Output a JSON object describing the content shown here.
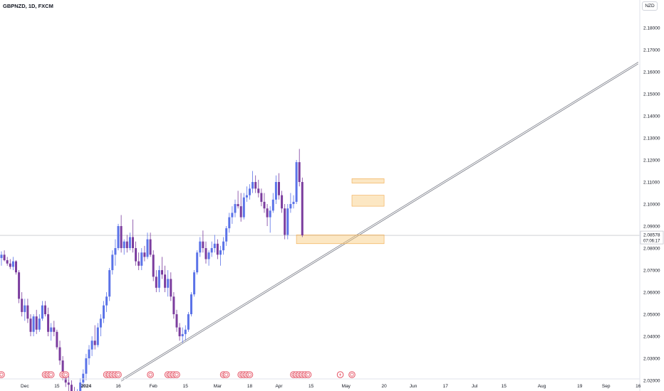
{
  "header": {
    "symbol": "GBPNZD, 1D, FXCM",
    "currency": "NZD"
  },
  "price_label": {
    "price": "2.08578",
    "countdown": "07:06:17"
  },
  "colors": {
    "up": "#5b73e8",
    "down": "#7b3d9e",
    "zone": "#f9c97a",
    "trendline": "#787b86",
    "axis_text": "#131722",
    "price_line": "#b2b5be",
    "event": "#e55466"
  },
  "chart_data": {
    "type": "candlestick",
    "title": "GBPNZD, 1D, FXCM",
    "ylim": [
      2.02,
      2.185
    ],
    "y_ticks": [
      "2.18000",
      "2.17000",
      "2.16000",
      "2.15000",
      "2.14000",
      "2.13000",
      "2.12000",
      "2.11000",
      "2.10000",
      "2.09000",
      "2.08000",
      "2.07000",
      "2.06000",
      "2.05000",
      "2.04000",
      "2.03000",
      "2.02000"
    ],
    "y_tick_values": [
      2.18,
      2.17,
      2.16,
      2.15,
      2.14,
      2.13,
      2.12,
      2.11,
      2.1,
      2.09,
      2.08,
      2.07,
      2.06,
      2.05,
      2.04,
      2.03,
      2.02
    ],
    "x_ticks": [
      {
        "label": "Dec",
        "index": 8
      },
      {
        "label": "15",
        "index": 19
      },
      {
        "label": "2024",
        "index": 29
      },
      {
        "label": "16",
        "index": 40
      },
      {
        "label": "Feb",
        "index": 52
      },
      {
        "label": "15",
        "index": 63
      },
      {
        "label": "Mar",
        "index": 74
      },
      {
        "label": "18",
        "index": 85
      },
      {
        "label": "Apr",
        "index": 95
      },
      {
        "label": "15",
        "index": 106
      },
      {
        "label": "May",
        "index": 118
      },
      {
        "label": "20",
        "index": 131
      },
      {
        "label": "Jun",
        "index": 141
      },
      {
        "label": "17",
        "index": 152
      },
      {
        "label": "Jul",
        "index": 162
      },
      {
        "label": "15",
        "index": 172
      },
      {
        "label": "Aug",
        "index": 185
      },
      {
        "label": "19",
        "index": 198
      },
      {
        "label": "Sep",
        "index": 207
      },
      {
        "label": "16",
        "index": 218
      }
    ],
    "candles": [
      [
        2.0755,
        2.0785,
        2.072,
        2.077
      ],
      [
        2.077,
        2.079,
        2.074,
        2.0745
      ],
      [
        2.0745,
        2.076,
        2.072,
        2.073
      ],
      [
        2.073,
        2.075,
        2.0705,
        2.0715
      ],
      [
        2.0715,
        2.076,
        2.07,
        2.074
      ],
      [
        2.074,
        2.0745,
        2.068,
        2.069
      ],
      [
        2.069,
        2.07,
        2.055,
        2.057
      ],
      [
        2.057,
        2.06,
        2.049,
        2.051
      ],
      [
        2.051,
        2.057,
        2.047,
        2.054
      ],
      [
        2.054,
        2.057,
        2.046,
        2.048
      ],
      [
        2.048,
        2.05,
        2.04,
        2.042
      ],
      [
        2.042,
        2.05,
        2.04,
        2.049
      ],
      [
        2.049,
        2.052,
        2.041,
        2.043
      ],
      [
        2.043,
        2.05,
        2.042,
        2.048
      ],
      [
        2.048,
        2.056,
        2.047,
        2.054
      ],
      [
        2.054,
        2.056,
        2.049,
        2.05
      ],
      [
        2.05,
        2.053,
        2.04,
        2.042
      ],
      [
        2.042,
        2.046,
        2.038,
        2.044
      ],
      [
        2.044,
        2.047,
        2.04,
        2.042
      ],
      [
        2.042,
        2.043,
        2.034,
        2.035
      ],
      [
        2.035,
        2.038,
        2.027,
        2.029
      ],
      [
        2.029,
        2.031,
        2.02,
        2.022
      ],
      [
        2.022,
        2.024,
        2.017,
        2.019
      ],
      [
        2.019,
        2.022,
        2.015,
        2.018
      ],
      [
        2.018,
        2.02,
        2.012,
        2.015
      ],
      [
        2.015,
        2.017,
        2.009,
        2.011
      ],
      [
        2.011,
        2.016,
        2.008,
        2.014
      ],
      [
        2.014,
        2.021,
        2.012,
        2.019
      ],
      [
        2.019,
        2.025,
        2.017,
        2.023
      ],
      [
        2.023,
        2.032,
        2.02,
        2.03
      ],
      [
        2.03,
        2.036,
        2.027,
        2.034
      ],
      [
        2.034,
        2.04,
        2.031,
        2.038
      ],
      [
        2.038,
        2.045,
        2.034,
        2.036
      ],
      [
        2.036,
        2.046,
        2.035,
        2.044
      ],
      [
        2.044,
        2.05,
        2.04,
        2.048
      ],
      [
        2.048,
        2.056,
        2.046,
        2.054
      ],
      [
        2.054,
        2.06,
        2.051,
        2.058
      ],
      [
        2.058,
        2.071,
        2.056,
        2.07
      ],
      [
        2.07,
        2.079,
        2.068,
        2.077
      ],
      [
        2.077,
        2.084,
        2.072,
        2.08
      ],
      [
        2.08,
        2.091,
        2.079,
        2.09
      ],
      [
        2.09,
        2.095,
        2.078,
        2.08
      ],
      [
        2.08,
        2.084,
        2.077,
        2.083
      ],
      [
        2.083,
        2.086,
        2.078,
        2.08
      ],
      [
        2.08,
        2.087,
        2.079,
        2.085
      ],
      [
        2.085,
        2.093,
        2.078,
        2.08
      ],
      [
        2.08,
        2.083,
        2.072,
        2.074
      ],
      [
        2.074,
        2.078,
        2.07,
        2.072
      ],
      [
        2.072,
        2.08,
        2.07,
        2.078
      ],
      [
        2.078,
        2.081,
        2.074,
        2.076
      ],
      [
        2.076,
        2.087,
        2.075,
        2.084
      ],
      [
        2.084,
        2.087,
        2.076,
        2.077
      ],
      [
        2.077,
        2.079,
        2.065,
        2.067
      ],
      [
        2.067,
        2.07,
        2.06,
        2.062
      ],
      [
        2.062,
        2.072,
        2.06,
        2.07
      ],
      [
        2.07,
        2.076,
        2.066,
        2.068
      ],
      [
        2.068,
        2.072,
        2.06,
        2.062
      ],
      [
        2.062,
        2.07,
        2.058,
        2.066
      ],
      [
        2.066,
        2.069,
        2.056,
        2.058
      ],
      [
        2.058,
        2.06,
        2.048,
        2.05
      ],
      [
        2.05,
        2.052,
        2.042,
        2.044
      ],
      [
        2.044,
        2.046,
        2.038,
        2.04
      ],
      [
        2.04,
        2.044,
        2.037,
        2.041
      ],
      [
        2.041,
        2.045,
        2.038,
        2.043
      ],
      [
        2.043,
        2.051,
        2.042,
        2.05
      ],
      [
        2.05,
        2.06,
        2.049,
        2.059
      ],
      [
        2.059,
        2.07,
        2.058,
        2.069
      ],
      [
        2.069,
        2.079,
        2.068,
        2.078
      ],
      [
        2.078,
        2.085,
        2.076,
        2.083
      ],
      [
        2.083,
        2.088,
        2.078,
        2.08
      ],
      [
        2.08,
        2.083,
        2.073,
        2.075
      ],
      [
        2.075,
        2.079,
        2.072,
        2.078
      ],
      [
        2.078,
        2.083,
        2.076,
        2.08
      ],
      [
        2.08,
        2.086,
        2.078,
        2.082
      ],
      [
        2.082,
        2.084,
        2.075,
        2.077
      ],
      [
        2.077,
        2.081,
        2.072,
        2.079
      ],
      [
        2.079,
        2.085,
        2.077,
        2.083
      ],
      [
        2.083,
        2.09,
        2.081,
        2.089
      ],
      [
        2.089,
        2.096,
        2.087,
        2.094
      ],
      [
        2.094,
        2.099,
        2.091,
        2.096
      ],
      [
        2.096,
        2.102,
        2.094,
        2.1
      ],
      [
        2.1,
        2.106,
        2.098,
        2.099
      ],
      [
        2.099,
        2.105,
        2.092,
        2.094
      ],
      [
        2.094,
        2.105,
        2.093,
        2.103
      ],
      [
        2.103,
        2.108,
        2.101,
        2.104
      ],
      [
        2.104,
        2.109,
        2.102,
        2.107
      ],
      [
        2.107,
        2.115,
        2.105,
        2.11
      ],
      [
        2.11,
        2.113,
        2.105,
        2.107
      ],
      [
        2.107,
        2.111,
        2.103,
        2.105
      ],
      [
        2.105,
        2.107,
        2.099,
        2.101
      ],
      [
        2.101,
        2.105,
        2.096,
        2.098
      ],
      [
        2.098,
        2.1,
        2.09,
        2.094
      ],
      [
        2.094,
        2.099,
        2.087,
        2.097
      ],
      [
        2.097,
        2.105,
        2.096,
        2.102
      ],
      [
        2.102,
        2.113,
        2.1,
        2.11
      ],
      [
        2.11,
        2.114,
        2.102,
        2.104
      ],
      [
        2.104,
        2.106,
        2.096,
        2.098
      ],
      [
        2.098,
        2.1,
        2.084,
        2.086
      ],
      [
        2.086,
        2.1,
        2.084,
        2.098
      ],
      [
        2.098,
        2.105,
        2.096,
        2.1
      ],
      [
        2.1,
        2.104,
        2.098,
        2.101
      ],
      [
        2.101,
        2.12,
        2.1,
        2.119
      ],
      [
        2.119,
        2.125,
        2.108,
        2.11
      ],
      [
        2.11,
        2.112,
        2.085,
        2.0858
      ]
    ],
    "start_index": 0,
    "zones": [
      {
        "y1": 2.1095,
        "y2": 2.1115,
        "i1": 120,
        "i2": 131
      },
      {
        "y1": 2.099,
        "y2": 2.104,
        "i1": 120,
        "i2": 131
      },
      {
        "y1": 2.082,
        "y2": 2.086,
        "i1": 101,
        "i2": 131
      }
    ],
    "trendline": {
      "i1": 41,
      "v1": 2.02,
      "i2": 218,
      "v2": 2.164
    },
    "current_price": 2.08578,
    "events": [
      0,
      15,
      16,
      17,
      21,
      22,
      36,
      37,
      38,
      39,
      40,
      51,
      57,
      58,
      59,
      60,
      76,
      77,
      82,
      83,
      84,
      85,
      100,
      101,
      102,
      103,
      104,
      105,
      116,
      120
    ]
  }
}
